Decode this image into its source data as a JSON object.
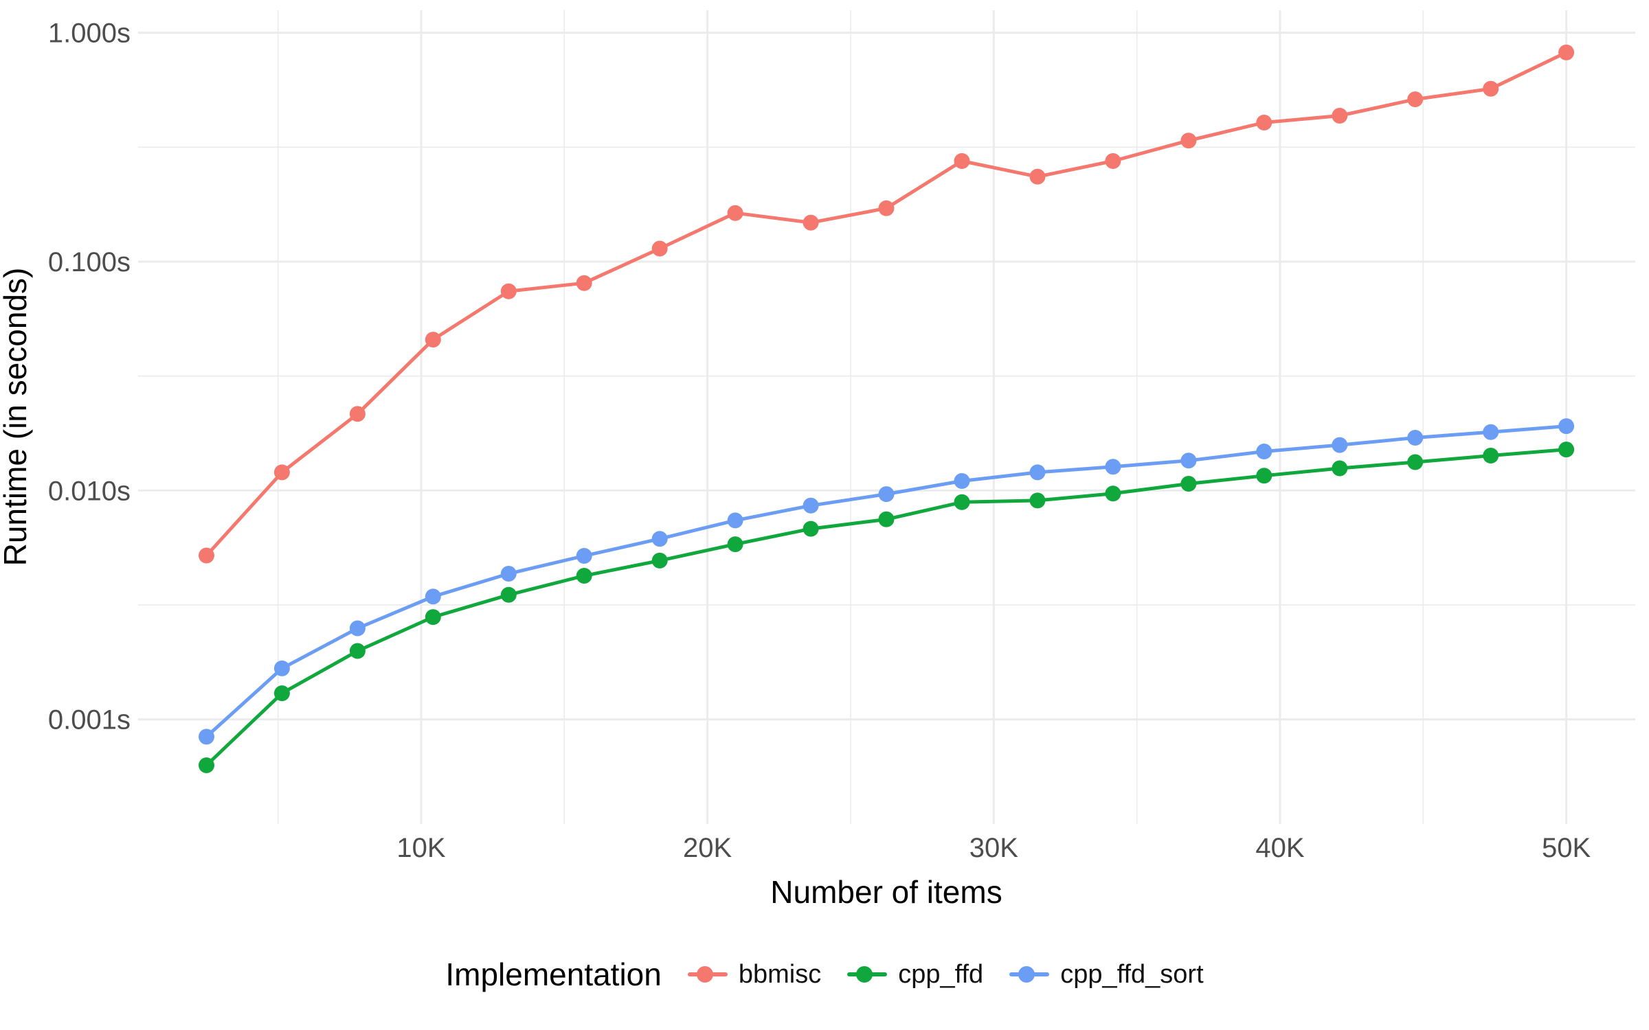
{
  "chart_data": {
    "type": "line",
    "title": "",
    "xlabel": "Number of items",
    "ylabel": "Runtime (in seconds)",
    "legend": {
      "title": "Implementation",
      "position": "bottom"
    },
    "grid": {
      "enabled": true,
      "color": "#EBEBEB",
      "background": "#FFFFFF"
    },
    "text_colors": {
      "tick_labels": "#4D4D4D",
      "axis_titles": "#000000",
      "legend_labels": "#111111"
    },
    "x_scale": {
      "type": "linear",
      "domain": [
        113,
        52409
      ],
      "ticks": [
        {
          "value": 10000,
          "label": "10K"
        },
        {
          "value": 20000,
          "label": "20K"
        },
        {
          "value": 30000,
          "label": "30K"
        },
        {
          "value": 40000,
          "label": "40K"
        },
        {
          "value": 50000,
          "label": "50K"
        }
      ],
      "minor_ticks": [
        5000,
        15000,
        25000,
        35000,
        45000
      ]
    },
    "y_scale": {
      "type": "log10",
      "domain": [
        0.000349,
        1.253
      ],
      "ticks": [
        {
          "value": 1.0,
          "label": "1.000s"
        },
        {
          "value": 0.1,
          "label": "0.100s"
        },
        {
          "value": 0.01,
          "label": "0.010s"
        },
        {
          "value": 0.001,
          "label": "0.001s"
        }
      ],
      "minor_ticks": [
        0.3162,
        0.03162,
        0.003162
      ]
    },
    "x": [
      2500,
      5139,
      7778,
      10417,
      13056,
      15694,
      18333,
      20972,
      23611,
      26250,
      28889,
      31528,
      34167,
      36806,
      39444,
      42083,
      44722,
      47361,
      50000
    ],
    "series": [
      {
        "name": "bbmisc",
        "color": "#F5786E",
        "values": [
          0.0052,
          0.012,
          0.0216,
          0.0456,
          0.0742,
          0.0806,
          0.114,
          0.163,
          0.148,
          0.171,
          0.275,
          0.235,
          0.275,
          0.338,
          0.405,
          0.434,
          0.512,
          0.569,
          0.82
        ]
      },
      {
        "name": "cpp_ffd",
        "color": "#10A73C",
        "values": [
          0.00063,
          0.0013,
          0.00199,
          0.0028,
          0.0035,
          0.00424,
          0.00494,
          0.00582,
          0.0068,
          0.00748,
          0.00889,
          0.00904,
          0.0097,
          0.0107,
          0.0116,
          0.0125,
          0.0133,
          0.0142,
          0.0151
        ]
      },
      {
        "name": "cpp_ffd_sort",
        "color": "#6B9DF5",
        "values": [
          0.00084,
          0.00167,
          0.0025,
          0.00344,
          0.00433,
          0.00518,
          0.00615,
          0.0074,
          0.00859,
          0.00964,
          0.011,
          0.012,
          0.0127,
          0.0135,
          0.0148,
          0.0158,
          0.017,
          0.018,
          0.0191
        ]
      }
    ]
  }
}
